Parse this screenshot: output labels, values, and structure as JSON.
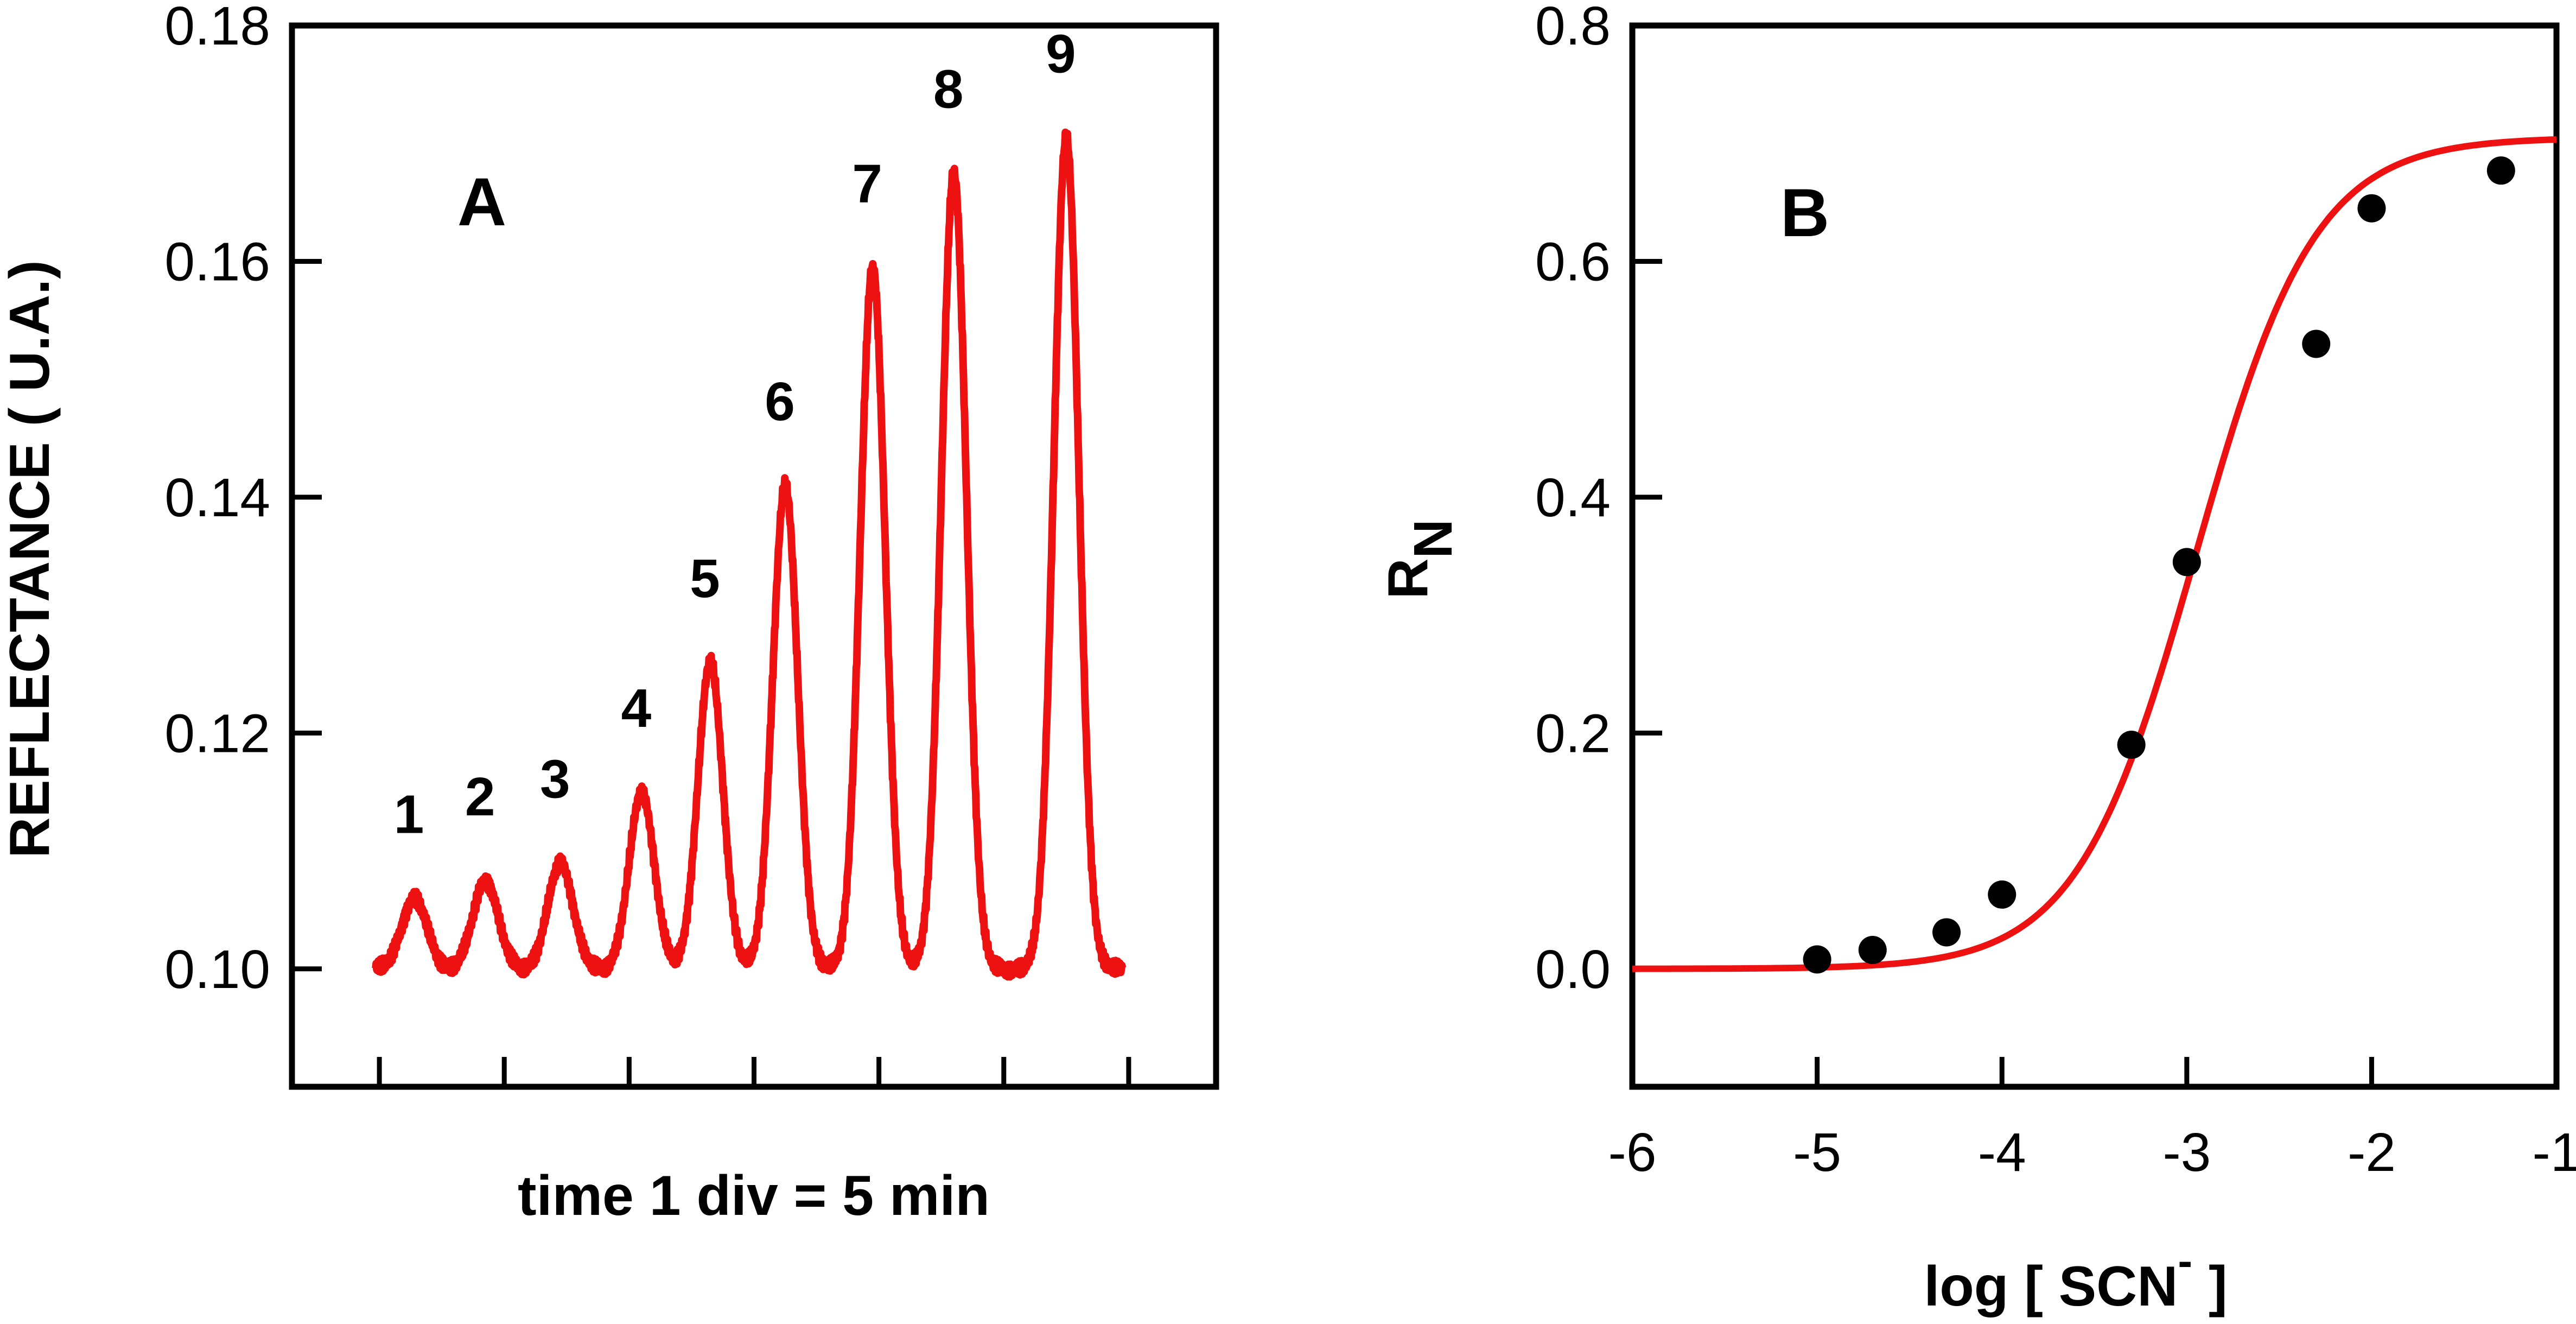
{
  "chart_data": [
    {
      "panel": "A",
      "type": "line",
      "title": "A",
      "xlabel": "time 1 div = 5 min",
      "ylabel": "REFLECTANCE ( U.A.)",
      "ylim": [
        0.09,
        0.18
      ],
      "yticks": [
        0.1,
        0.12,
        0.14,
        0.16,
        0.18
      ],
      "ytick_labels": [
        "0.10",
        "0.12",
        "0.14",
        "0.16",
        "0.18"
      ],
      "xlim": [
        -0.7,
        6.7
      ],
      "xticks": [
        0,
        1,
        2,
        3,
        4,
        5,
        6
      ],
      "line_color": "#ee1111",
      "baseline": 0.1,
      "peaks": [
        {
          "label": "1",
          "t": 0.28,
          "value": 0.106
        },
        {
          "label": "2",
          "t": 0.85,
          "value": 0.1075
        },
        {
          "label": "3",
          "t": 1.45,
          "value": 0.109
        },
        {
          "label": "4",
          "t": 2.1,
          "value": 0.115
        },
        {
          "label": "5",
          "t": 2.65,
          "value": 0.126
        },
        {
          "label": "6",
          "t": 3.25,
          "value": 0.141
        },
        {
          "label": "7",
          "t": 3.95,
          "value": 0.1595
        },
        {
          "label": "8",
          "t": 4.6,
          "value": 0.1675
        },
        {
          "label": "9",
          "t": 5.5,
          "value": 0.1705
        }
      ]
    },
    {
      "panel": "B",
      "type": "scatter",
      "title": "B",
      "xlabel": "log [ SCN",
      "xlabel_superscript": "-",
      "xlabel_end": "]",
      "ylabel": "R",
      "ylabel_subscript": "N",
      "xlim": [
        -6,
        -1
      ],
      "ylim": [
        -0.1,
        0.8
      ],
      "xticks": [
        -6,
        -5,
        -4,
        -3,
        -2,
        -1
      ],
      "xtick_labels": [
        "-6",
        "-5",
        "-4",
        "-3",
        "-2",
        "-1"
      ],
      "yticks": [
        0.0,
        0.2,
        0.4,
        0.6,
        0.8
      ],
      "ytick_labels": [
        "0.0",
        "0.2",
        "0.4",
        "0.6",
        "0.8"
      ],
      "line_color": "#ee1111",
      "points": [
        {
          "x": -5.0,
          "y": 0.008
        },
        {
          "x": -4.7,
          "y": 0.016
        },
        {
          "x": -4.3,
          "y": 0.031
        },
        {
          "x": -4.0,
          "y": 0.063
        },
        {
          "x": -3.3,
          "y": 0.19
        },
        {
          "x": -3.0,
          "y": 0.345
        },
        {
          "x": -2.3,
          "y": 0.53
        },
        {
          "x": -2.0,
          "y": 0.645
        },
        {
          "x": -1.3,
          "y": 0.677
        }
      ],
      "fit": {
        "min": 0.0,
        "max": 0.705,
        "x50": -2.95,
        "slope": 1.35
      }
    }
  ]
}
